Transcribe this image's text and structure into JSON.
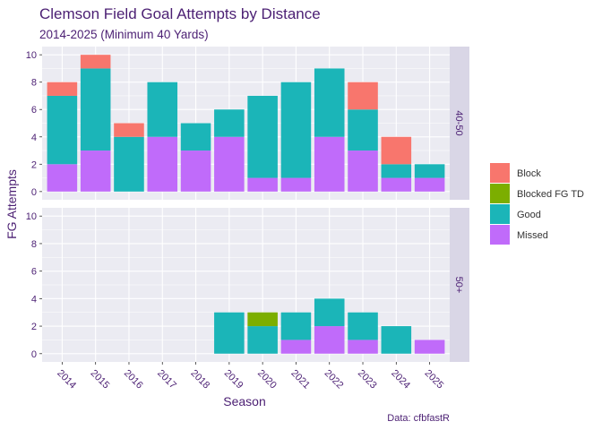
{
  "chart_data": {
    "type": "bar",
    "stacked": true,
    "title": "Clemson Field Goal Attempts by Distance",
    "subtitle": "2014-2025 (Minimum 40 Yards)",
    "xlabel": "Season",
    "ylabel": "FG Attempts",
    "caption": "Data: cfbfastR",
    "ylim": [
      0,
      10
    ],
    "yticks": [
      "0",
      "2",
      "4",
      "6",
      "8",
      "10"
    ],
    "categories": [
      "2014",
      "2015",
      "2016",
      "2017",
      "2018",
      "2019",
      "2020",
      "2021",
      "2022",
      "2023",
      "2024",
      "2025"
    ],
    "legend": {
      "position": "right",
      "entries": [
        {
          "name": "Block",
          "color": "#f8766d"
        },
        {
          "name": "Blocked FG TD",
          "color": "#7cae00"
        },
        {
          "name": "Good",
          "color": "#1bb5b8"
        },
        {
          "name": "Missed",
          "color": "#c06bfa"
        }
      ]
    },
    "stack_order": [
      "Missed",
      "Good",
      "Blocked FG TD",
      "Block"
    ],
    "facets": [
      {
        "label": "40-50",
        "series": [
          {
            "name": "Missed",
            "values": [
              2,
              3,
              0,
              4,
              3,
              4,
              1,
              1,
              4,
              3,
              1,
              1
            ]
          },
          {
            "name": "Good",
            "values": [
              5,
              6,
              4,
              4,
              2,
              2,
              6,
              7,
              5,
              3,
              1,
              1
            ]
          },
          {
            "name": "Blocked FG TD",
            "values": [
              0,
              0,
              0,
              0,
              0,
              0,
              0,
              0,
              0,
              0,
              0,
              0
            ]
          },
          {
            "name": "Block",
            "values": [
              1,
              1,
              1,
              0,
              0,
              0,
              0,
              0,
              0,
              2,
              2,
              0
            ]
          }
        ]
      },
      {
        "label": "50+",
        "series": [
          {
            "name": "Missed",
            "values": [
              0,
              0,
              0,
              0,
              0,
              0,
              0,
              1,
              2,
              1,
              0,
              1
            ]
          },
          {
            "name": "Good",
            "values": [
              0,
              0,
              0,
              0,
              0,
              3,
              2,
              2,
              2,
              2,
              2,
              0
            ]
          },
          {
            "name": "Blocked FG TD",
            "values": [
              0,
              0,
              0,
              0,
              0,
              0,
              1,
              0,
              0,
              0,
              0,
              0
            ]
          },
          {
            "name": "Block",
            "values": [
              0,
              0,
              0,
              0,
              0,
              0,
              0,
              0,
              0,
              0,
              0,
              0
            ]
          }
        ]
      }
    ]
  }
}
